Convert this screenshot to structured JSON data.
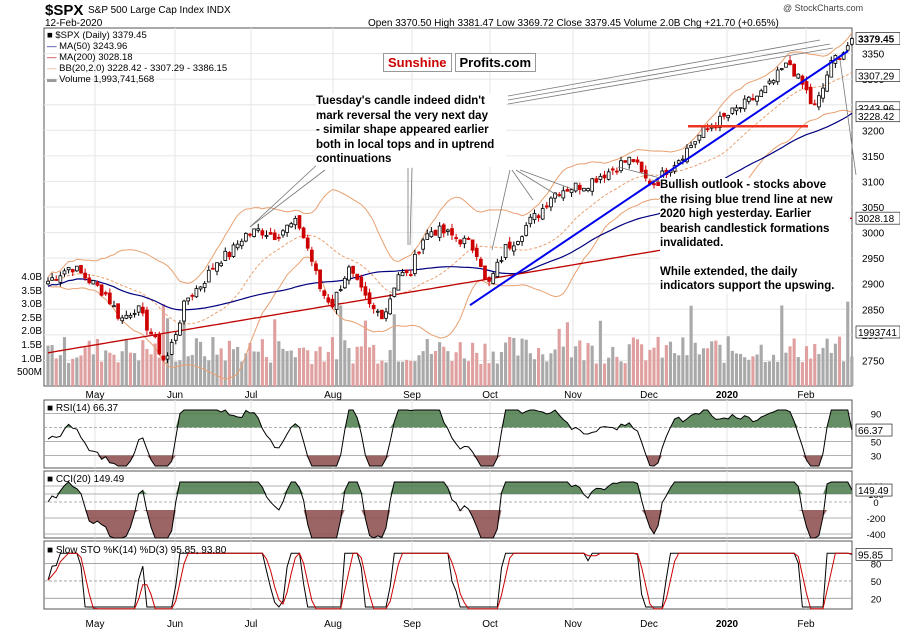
{
  "header": {
    "symbol": "$SPX",
    "description": "S&P 500 Large Cap Index",
    "exchange": "INDX",
    "date": "12-Feb-2020",
    "ohlc": "Open 3370.50  High 3381.47  Low 3369.72  Close 3379.45  Volume 2.0B  Chg +21.70 (+0.65%)",
    "watermark": "@ StockCharts.com"
  },
  "legend": {
    "price": "$SPX (Daily) 3379.45",
    "ma50": "MA(50) 3243.96",
    "ma200": "MA(200) 3028.18",
    "bb": "BB(20,2.0) 3228.42 - 3307.29 - 3386.15",
    "volume": "Volume 1,993,741,568"
  },
  "logo": {
    "part1": "Sunshine",
    "part2": "Profits.com"
  },
  "annotations": {
    "left_lines": [
      "Tuesday's candle indeed didn't",
      "mark reversal the very next day",
      "- similar shape appeared earlier",
      "both in local tops and in uptrend",
      "continuations"
    ],
    "right_lines": [
      "Bullish outlook - stocks above",
      "the rising blue trend line at new",
      "2020 high yesterday. Earlier",
      "bearish candlestick formations",
      "invalidated.",
      "",
      "While extended, the daily",
      "indicators support the upswing."
    ]
  },
  "price_labels": {
    "close": "3379.45",
    "bb_mid": "3307.29",
    "ma50": "3243.96",
    "bb_low": "3228.42",
    "ma200": "3028.18",
    "volume": "1993741"
  },
  "indicator_labels": {
    "rsi": "RSI(14) 66.37",
    "rsi_value": "66.37",
    "cci": "CCI(20) 149.49",
    "cci_value": "149.49",
    "sto": "Slow STO %K(14) %D(3) 95.85, 93.80",
    "sto_value": "95.85"
  },
  "colors": {
    "up": "#000000",
    "down": "#cc0000",
    "ma50": "#000080",
    "ma200": "#c00000",
    "bb": "#e8a070",
    "trend": "#0000ee",
    "support": "#ee3322",
    "volume_up": "#a9a9a9",
    "volume_down": "#e0a0a0",
    "fill_green": "#4a7a4a",
    "fill_red": "#8a4a4a"
  },
  "chart_data": {
    "type": "line",
    "title": "$SPX S&P 500 Large Cap Index INDX",
    "price_axis": {
      "ylim": [
        2700,
        3400
      ],
      "ticks": [
        2750,
        2800,
        2850,
        2900,
        2950,
        3000,
        3050,
        3100,
        3150,
        3200,
        3250,
        3300,
        3350
      ]
    },
    "volume_axis": {
      "ticks": [
        "500M",
        "1.0B",
        "1.5B",
        "2.0B",
        "2.5B",
        "3.0B",
        "3.5B",
        "4.0B"
      ]
    },
    "months": [
      "May",
      "Jun",
      "Jul",
      "Aug",
      "Sep",
      "Oct",
      "Nov",
      "Dec",
      "2020",
      "Feb"
    ],
    "price_path": [
      [
        0,
        2905
      ],
      [
        12,
        2935
      ],
      [
        22,
        2905
      ],
      [
        30,
        2880
      ],
      [
        38,
        2830
      ],
      [
        46,
        2855
      ],
      [
        54,
        2800
      ],
      [
        61,
        2745
      ],
      [
        66,
        2800
      ],
      [
        72,
        2870
      ],
      [
        80,
        2900
      ],
      [
        88,
        2945
      ],
      [
        95,
        2960
      ],
      [
        102,
        2995
      ],
      [
        110,
        3005
      ],
      [
        118,
        2995
      ],
      [
        124,
        3010
      ],
      [
        130,
        3020
      ],
      [
        136,
        2960
      ],
      [
        142,
        2885
      ],
      [
        148,
        2860
      ],
      [
        156,
        2930
      ],
      [
        162,
        2890
      ],
      [
        168,
        2850
      ],
      [
        175,
        2840
      ],
      [
        182,
        2920
      ],
      [
        188,
        2915
      ],
      [
        194,
        2985
      ],
      [
        200,
        3005
      ],
      [
        206,
        3000
      ],
      [
        212,
        2990
      ],
      [
        218,
        2980
      ],
      [
        224,
        2960
      ],
      [
        228,
        2890
      ],
      [
        232,
        2920
      ],
      [
        238,
        2970
      ],
      [
        244,
        2990
      ],
      [
        250,
        3020
      ],
      [
        256,
        3040
      ],
      [
        262,
        3075
      ],
      [
        268,
        3085
      ],
      [
        274,
        3090
      ],
      [
        280,
        3095
      ],
      [
        286,
        3110
      ],
      [
        292,
        3120
      ],
      [
        298,
        3135
      ],
      [
        304,
        3145
      ],
      [
        310,
        3105
      ],
      [
        316,
        3095
      ],
      [
        322,
        3125
      ],
      [
        328,
        3145
      ],
      [
        334,
        3170
      ],
      [
        340,
        3195
      ],
      [
        346,
        3210
      ],
      [
        352,
        3225
      ],
      [
        358,
        3240
      ],
      [
        364,
        3255
      ],
      [
        370,
        3270
      ],
      [
        376,
        3290
      ],
      [
        382,
        3320
      ],
      [
        386,
        3330
      ],
      [
        390,
        3300
      ],
      [
        394,
        3280
      ],
      [
        398,
        3240
      ],
      [
        402,
        3270
      ],
      [
        406,
        3320
      ],
      [
        410,
        3345
      ],
      [
        414,
        3355
      ],
      [
        418,
        3379
      ]
    ],
    "ma50": 3243.96,
    "ma200": 3028.18,
    "bollinger": {
      "upper": 3386.15,
      "middle": 3307.29,
      "lower": 3228.42
    },
    "volume_last": 1993741568,
    "rsi": {
      "value": 66.37,
      "levels": [
        30,
        50,
        70
      ]
    },
    "cci": {
      "value": 149.49,
      "levels": [
        -400,
        -200,
        0,
        100,
        200
      ]
    },
    "stochastic": {
      "k": 95.85,
      "d": 93.8,
      "levels": [
        20,
        50,
        80
      ]
    }
  }
}
